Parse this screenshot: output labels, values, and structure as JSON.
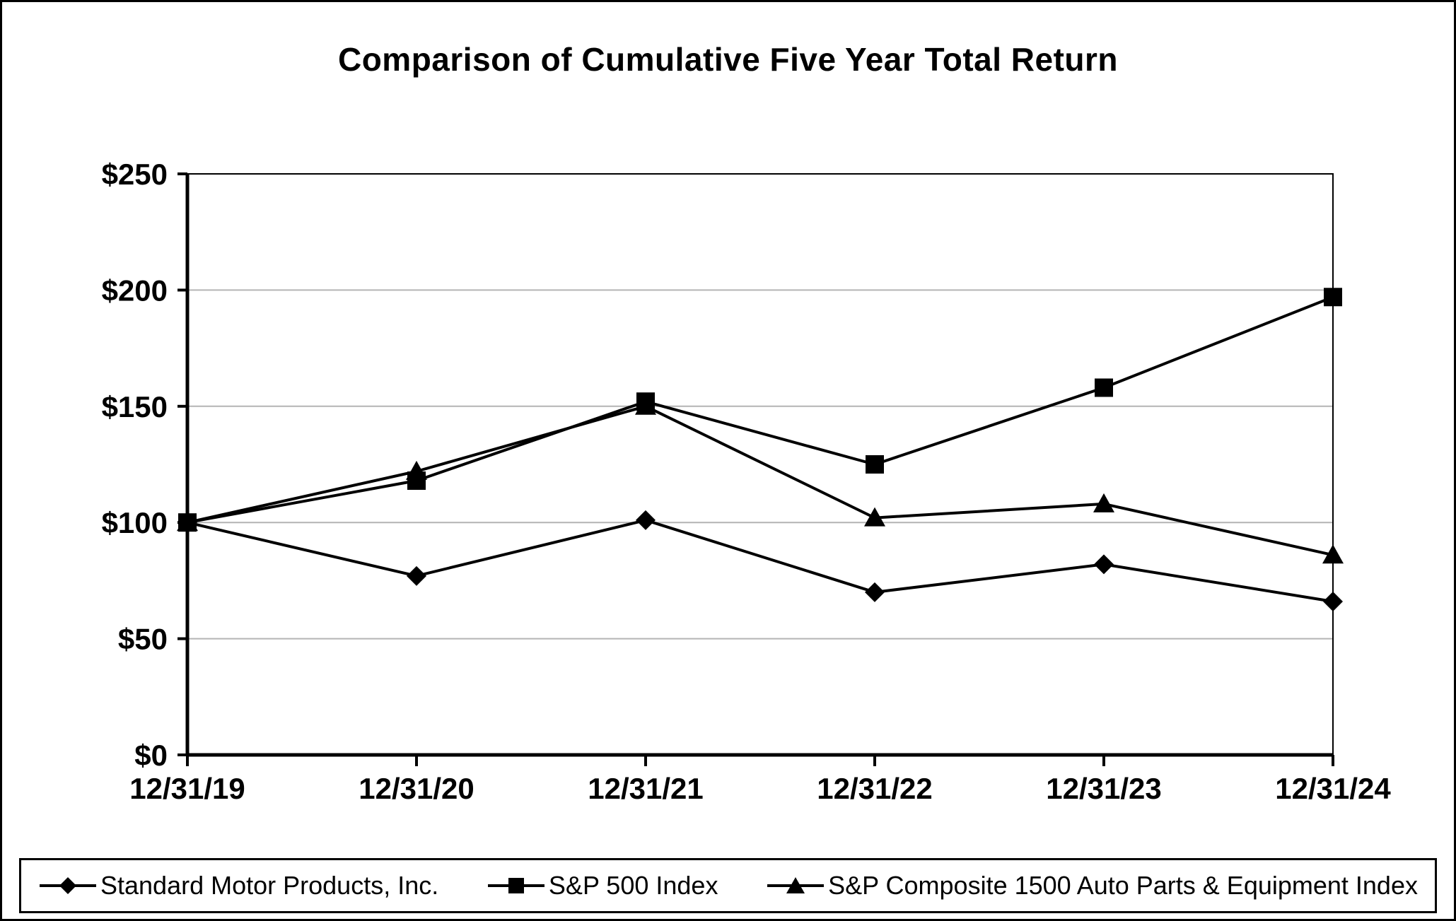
{
  "chart_data": {
    "type": "line",
    "title": "Comparison of Cumulative Five Year Total Return",
    "categories": [
      "12/31/19",
      "12/31/20",
      "12/31/21",
      "12/31/22",
      "12/31/23",
      "12/31/24"
    ],
    "series": [
      {
        "name": "Standard Motor Products, Inc.",
        "marker": "diamond",
        "values": [
          100,
          77,
          101,
          70,
          82,
          66
        ]
      },
      {
        "name": "S&P 500 Index",
        "marker": "square",
        "values": [
          100,
          118,
          152,
          125,
          158,
          197
        ]
      },
      {
        "name": "S&P Composite 1500 Auto Parts & Equipment Index",
        "marker": "triangle",
        "values": [
          100,
          122,
          150,
          102,
          108,
          86
        ]
      }
    ],
    "xlabel": "",
    "ylabel": "",
    "ylim": [
      0,
      250
    ],
    "y_ticks": [
      {
        "value": 0,
        "label": "$0"
      },
      {
        "value": 50,
        "label": "$50"
      },
      {
        "value": 100,
        "label": "$100"
      },
      {
        "value": 150,
        "label": "$150"
      },
      {
        "value": 200,
        "label": "$200"
      },
      {
        "value": 250,
        "label": "$250"
      }
    ],
    "grid": "horizontal",
    "legend_position": "bottom",
    "colors": {
      "line": "#000000",
      "marker": "#000000",
      "grid": "#b4b4b4",
      "background": "#ffffff",
      "border": "#000000"
    }
  }
}
